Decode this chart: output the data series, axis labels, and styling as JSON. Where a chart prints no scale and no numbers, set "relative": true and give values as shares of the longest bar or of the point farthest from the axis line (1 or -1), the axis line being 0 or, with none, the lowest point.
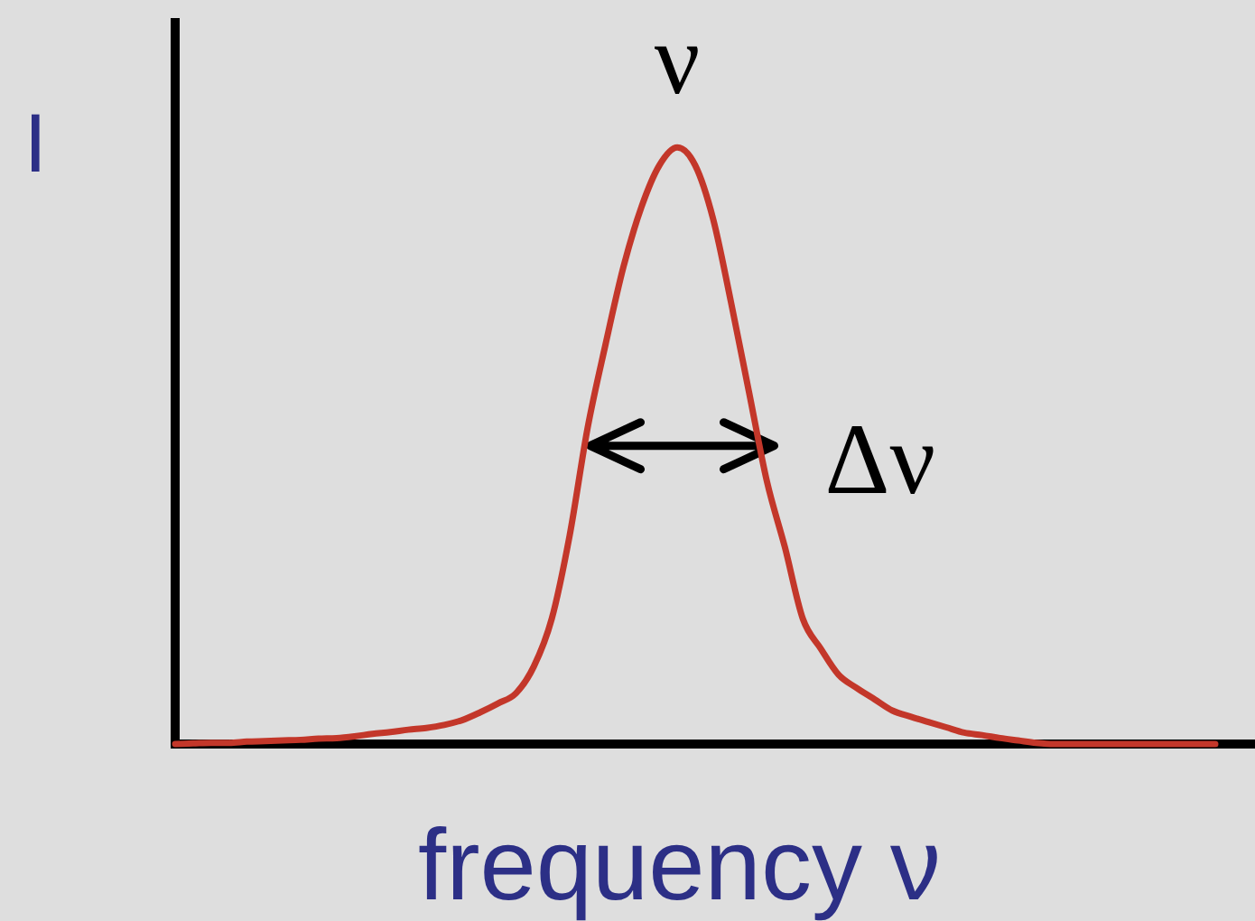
{
  "chart_data": {
    "type": "line",
    "xlabel": "frequency ν",
    "ylabel": "I",
    "relative": true,
    "categories": [
      null,
      null,
      null,
      null,
      null,
      null,
      null,
      null,
      null,
      null,
      null,
      null,
      null,
      null,
      null,
      null,
      null,
      null,
      null,
      null,
      null,
      null,
      null,
      null,
      null,
      null,
      null,
      null,
      null,
      null,
      null,
      null,
      null,
      null,
      null,
      null,
      null,
      null,
      null,
      null,
      null,
      null,
      null,
      null,
      null,
      null,
      null,
      null,
      null,
      null,
      null,
      null,
      null,
      null,
      null,
      null,
      null,
      null,
      null
    ],
    "color": "#c3372a",
    "values": [
      0,
      0.001,
      0.002,
      0.002,
      0.004,
      0.005,
      0.006,
      0.007,
      0.009,
      0.01,
      0.013,
      0.017,
      0.02,
      0.024,
      0.027,
      0.032,
      0.04,
      0.053,
      0.068,
      0.085,
      0.13,
      0.21,
      0.35,
      0.53,
      0.67,
      0.8,
      0.9,
      0.97,
      1,
      0.97,
      0.88,
      0.74,
      0.59,
      0.44,
      0.33,
      0.21,
      0.16,
      0.116,
      0.094,
      0.075,
      0.056,
      0.046,
      0.037,
      0.028,
      0.019,
      0.015,
      0.01,
      0.006,
      0.002,
      0,
      0,
      0,
      0,
      0,
      0,
      0,
      0,
      0,
      0
    ],
    "annotations": [
      {
        "text": "ν",
        "y": 1
      },
      "Δν"
    ]
  }
}
